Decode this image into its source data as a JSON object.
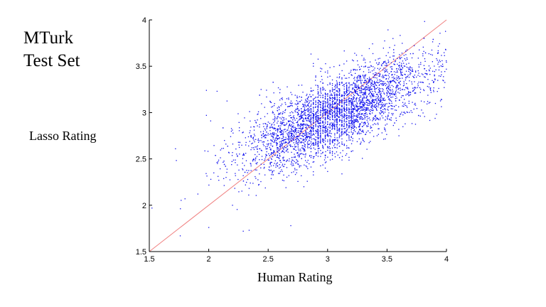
{
  "title_lines": [
    "MTurk",
    "Test Set"
  ],
  "chart_data": {
    "type": "scatter",
    "title": "MTurk Test Set",
    "xlabel": "Human Rating",
    "ylabel": "Lasso Rating",
    "xlim": [
      1.5,
      4
    ],
    "ylim": [
      1.5,
      4
    ],
    "xticks": [
      "1.5",
      "2",
      "2.5",
      "3",
      "3.5",
      "4"
    ],
    "yticks": [
      "1.5",
      "2",
      "2.5",
      "3",
      "3.5",
      "4"
    ],
    "grid": false,
    "legend": "none",
    "reference_line": {
      "from": [
        1.5,
        1.5
      ],
      "to": [
        4,
        4
      ],
      "color": "#f08080"
    },
    "point_color": "#1010ee",
    "approx_point_count": 4000,
    "point_distribution": {
      "x_mean": 3.05,
      "x_std": 0.38,
      "y_mean": 2.98,
      "y_std": 0.27,
      "x_dense_band": [
        2.85,
        3.2
      ],
      "sample_points": [
        [
          1.72,
          2.61
        ],
        [
          1.76,
          1.67
        ],
        [
          1.8,
          2.07
        ],
        [
          1.98,
          3.24
        ],
        [
          2.07,
          3.23
        ],
        [
          1.98,
          2.97
        ],
        [
          2.0,
          1.76
        ],
        [
          2.29,
          1.72
        ],
        [
          2.34,
          1.73
        ],
        [
          2.69,
          1.78
        ],
        [
          2.44,
          3.25
        ],
        [
          3.65,
          3.5
        ],
        [
          3.97,
          3.5
        ],
        [
          3.98,
          3.27
        ],
        [
          3.6,
          2.75
        ],
        [
          2.6,
          3.25
        ],
        [
          2.2,
          2.0
        ],
        [
          3.3,
          2.7
        ],
        [
          2.8,
          2.2
        ],
        [
          3.2,
          3.3
        ]
      ]
    }
  }
}
